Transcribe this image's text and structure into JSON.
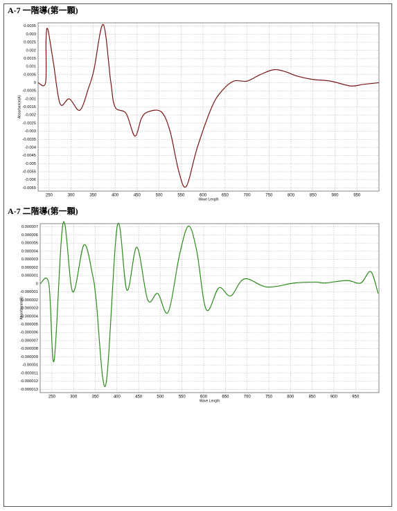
{
  "chart_data": [
    {
      "type": "line",
      "title": "A-7 一階導(第一顆)",
      "xlabel": "Wave Length",
      "ylabel": "Absorbance(A)",
      "x": [
        225,
        242,
        243,
        247,
        260,
        275,
        296,
        320,
        340,
        352,
        373,
        390,
        400,
        425,
        445,
        460,
        475,
        505,
        525,
        545,
        562,
        587,
        620,
        643,
        670,
        700,
        730,
        760,
        785,
        815,
        850,
        890,
        935,
        965,
        1000
      ],
      "values": [
        0,
        0,
        0.0026,
        0.0033,
        0.0012,
        -0.0013,
        -0.001,
        -0.0017,
        -0.0003,
        0.0008,
        0.0036,
        0.0001,
        -0.0015,
        -0.0019,
        -0.0033,
        -0.0022,
        -0.0018,
        -0.0018,
        -0.003,
        -0.0055,
        -0.0064,
        -0.004,
        -0.0015,
        -0.0005,
        0.0001,
        0.0001,
        0.0005,
        0.0008,
        0.0007,
        0.0004,
        0.0002,
        0.0001,
        -0.0002,
        -0.0001,
        0
      ],
      "color": "#7a1414",
      "xlim": [
        225,
        1000
      ],
      "ylim": [
        -0.0067,
        0.0037
      ],
      "xticks": [
        250,
        300,
        350,
        400,
        450,
        500,
        550,
        600,
        650,
        700,
        750,
        800,
        850,
        900,
        950
      ],
      "yticks": [
        0.0035,
        0.003,
        0.0025,
        0.002,
        0.0015,
        0.001,
        0.0005,
        0,
        -0.0005,
        -0.001,
        -0.0015,
        -0.002,
        -0.0025,
        -0.003,
        -0.0035,
        -0.004,
        -0.0045,
        -0.005,
        -0.0055,
        -0.006,
        -0.0065
      ],
      "grid": true
    },
    {
      "type": "line",
      "title": "A-7 二階導(第一顆)",
      "xlabel": "Wave Length",
      "ylabel": "Absorbance(A)",
      "x": [
        223,
        243,
        255,
        276,
        298,
        324,
        344,
        352,
        374,
        401,
        423,
        446,
        471,
        494,
        518,
        544,
        565,
        584,
        606,
        635,
        662,
        694,
        746,
        810,
        858,
        880,
        930,
        962,
        985,
        1002
      ],
      "values": [
        0,
        0,
        -9.5e-06,
        7.5e-06,
        -1e-06,
        4.8e-06,
        1e-06,
        -2e-06,
        -1.25e-05,
        7.2e-06,
        -8e-07,
        4.5e-06,
        -2e-06,
        -1.2e-06,
        -3.5e-06,
        3.5e-06,
        7.1e-06,
        4e-06,
        -3.2e-06,
        -5e-07,
        -1.5e-06,
        6e-07,
        -4e-07,
        1e-07,
        2e-07,
        1e-07,
        4e-07,
        1e-07,
        1.5e-06,
        -1.2e-06
      ],
      "color": "#2d8a1c",
      "xlim": [
        223,
        1004
      ],
      "ylim": [
        -1.34e-05,
        7.4e-06
      ],
      "xticks": [
        250,
        300,
        350,
        400,
        450,
        500,
        550,
        600,
        650,
        700,
        750,
        800,
        850,
        900,
        950
      ],
      "yticks": [
        7e-06,
        6e-06,
        5e-06,
        4e-06,
        3e-06,
        2e-06,
        1e-06,
        0,
        -1e-06,
        -2e-06,
        -3e-06,
        -4e-06,
        -5e-06,
        -6e-06,
        -7e-06,
        -8e-06,
        -9e-06,
        -1e-05,
        -1.1e-05,
        -1.2e-05,
        -1.3e-05
      ],
      "grid": true
    }
  ]
}
